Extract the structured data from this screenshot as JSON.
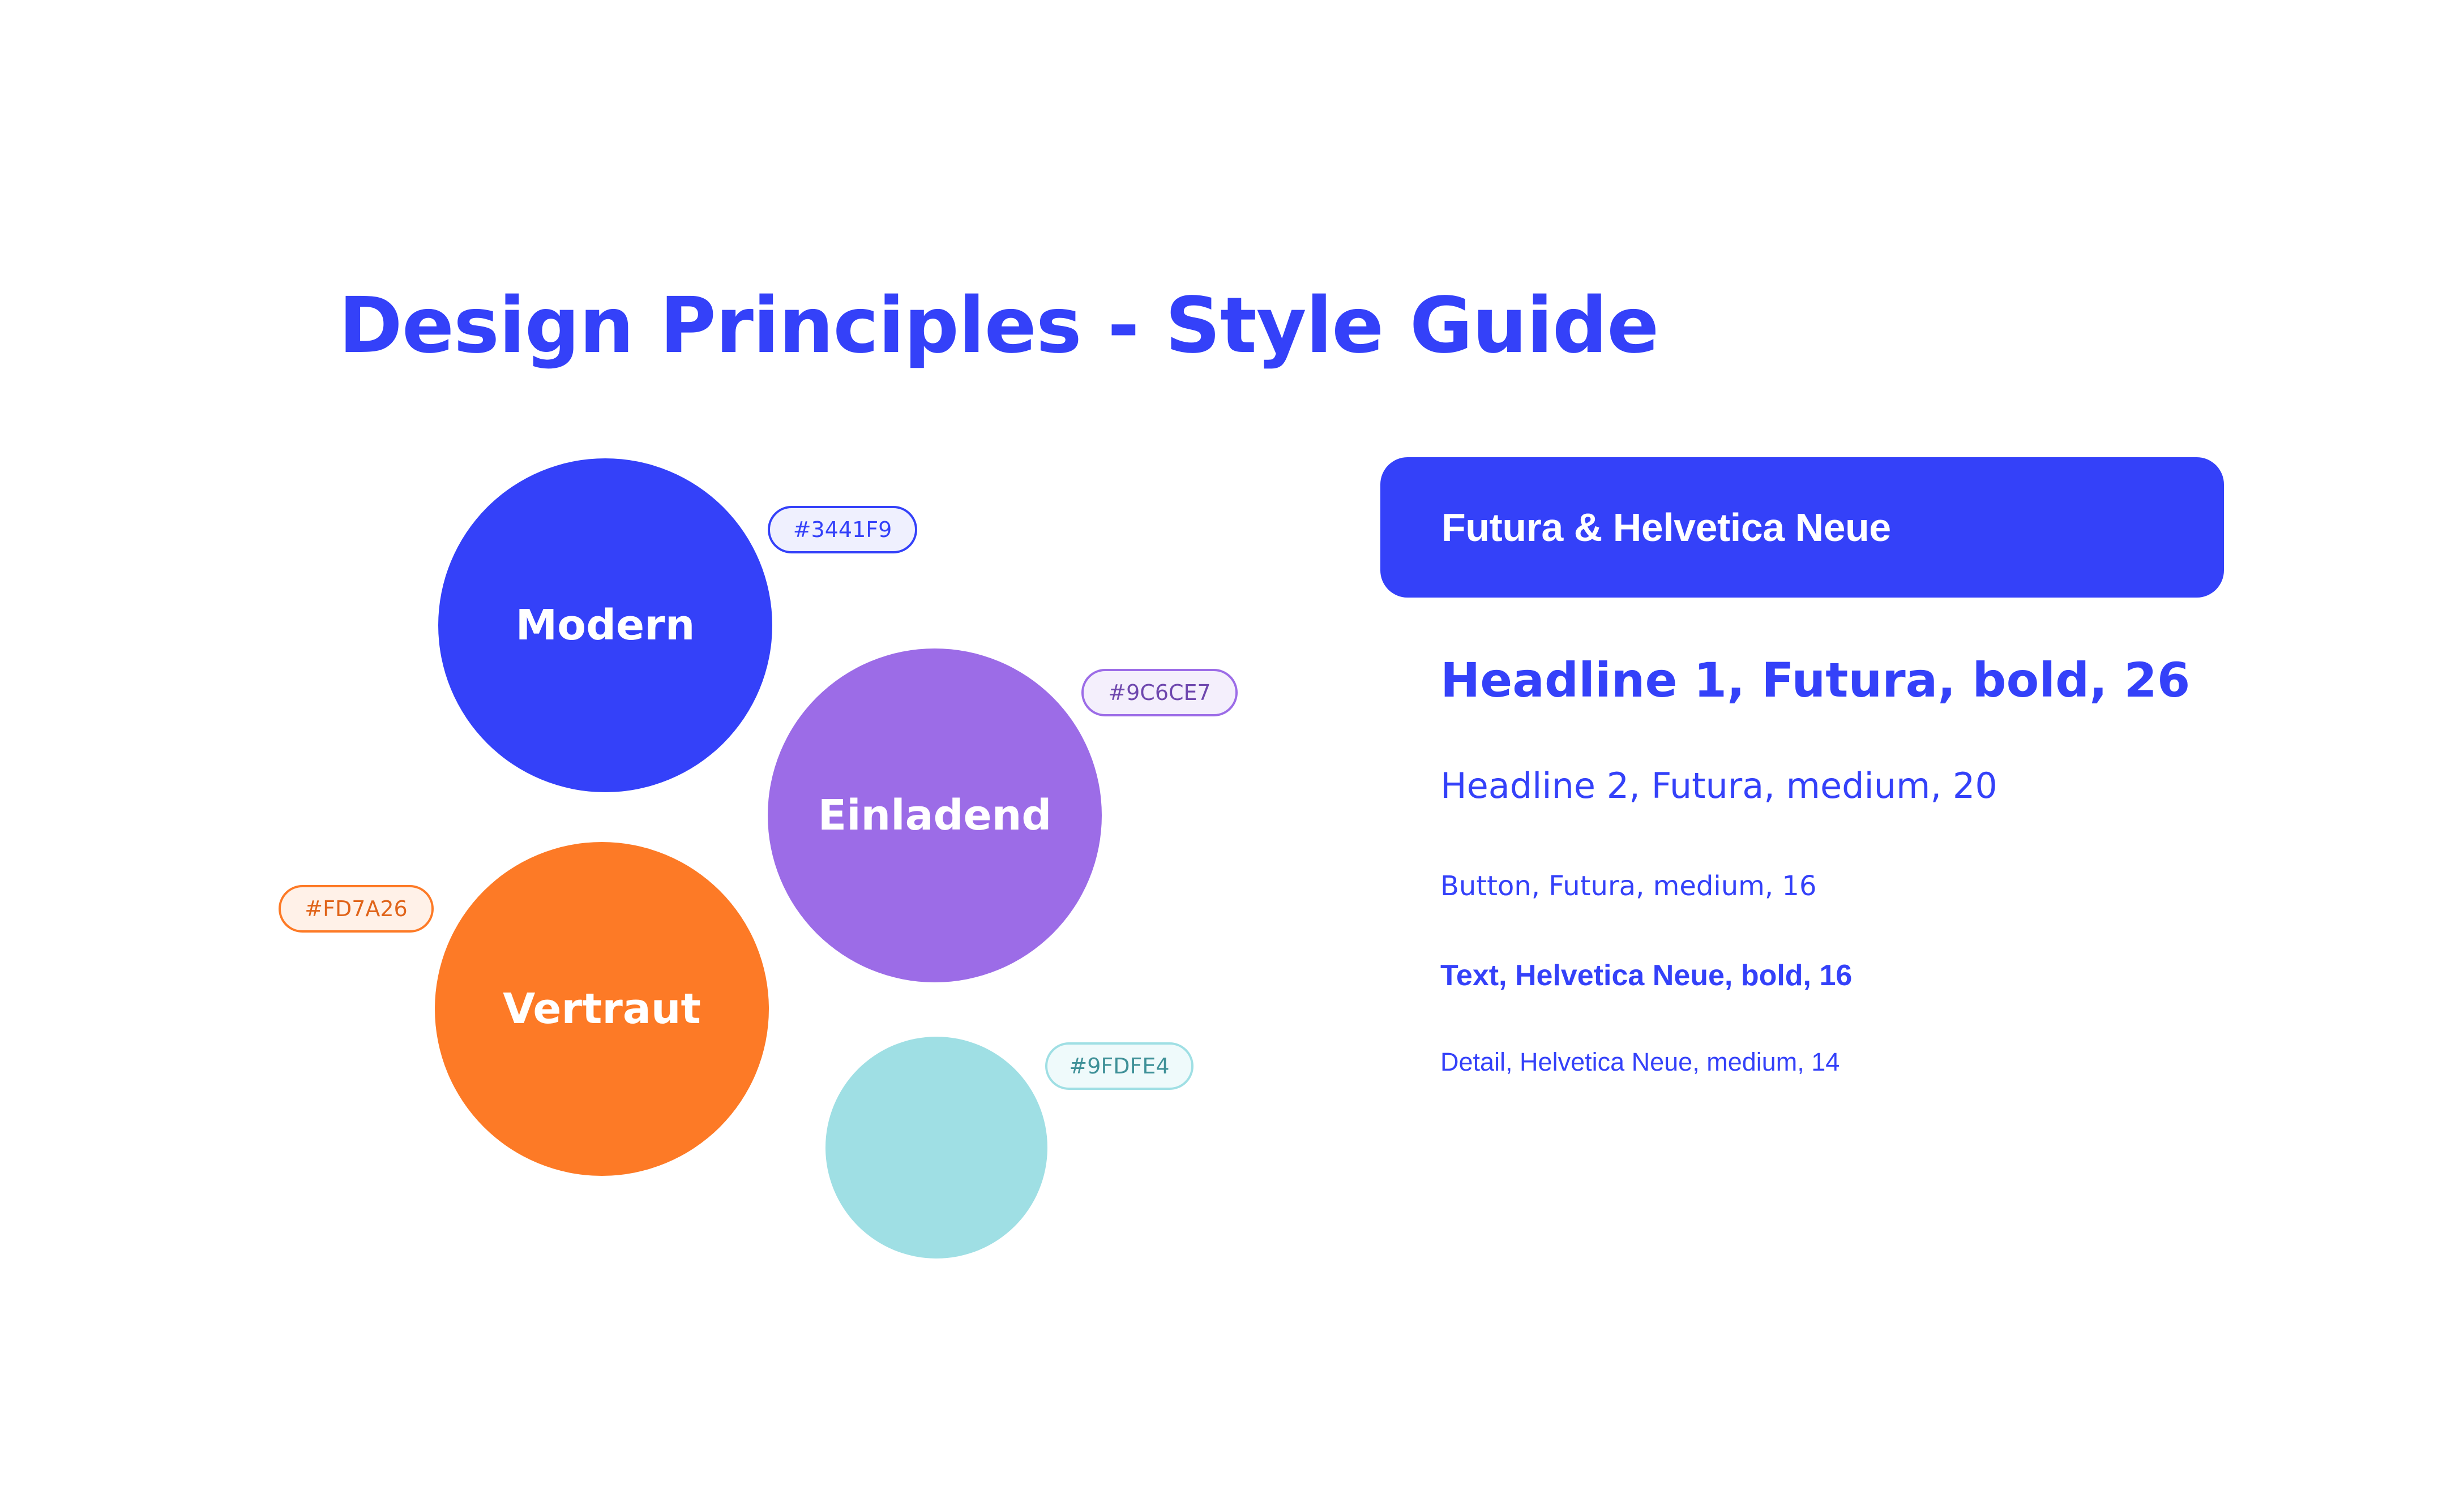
{
  "page": {
    "title": "Design Principles - Style Guide",
    "background": "#FFFFFF",
    "text_color": "#3441F9"
  },
  "palette": [
    {
      "label": "Modern",
      "hex": "#3441F9",
      "color": "#3441F9",
      "chip_bg": "#EFF0FE",
      "chip_text": "#3441F9"
    },
    {
      "label": "Einladend",
      "hex": "#9C6CE7",
      "color": "#9C6CE7",
      "chip_bg": "#F4EFFC",
      "chip_text": "#6E47AE"
    },
    {
      "label": "Vertraut",
      "hex": "#FD7A26",
      "color": "#FD7A26",
      "chip_bg": "#FFF1E8",
      "chip_text": "#E0641A"
    },
    {
      "label": "",
      "hex": "#9FDFE4",
      "color": "#9FDFE4",
      "chip_bg": "#EFFAFB",
      "chip_text": "#3F9198"
    }
  ],
  "typography": {
    "header": "Futura & Helvetica Neue",
    "samples": [
      {
        "label": "Headline 1, Futura, bold, 26"
      },
      {
        "label": "Headline 2, Futura, medium, 20"
      },
      {
        "label": "Button, Futura, medium, 16"
      },
      {
        "label": "Text, Helvetica Neue, bold, 16"
      },
      {
        "label": "Detail, Helvetica Neue, medium, 14"
      }
    ]
  }
}
